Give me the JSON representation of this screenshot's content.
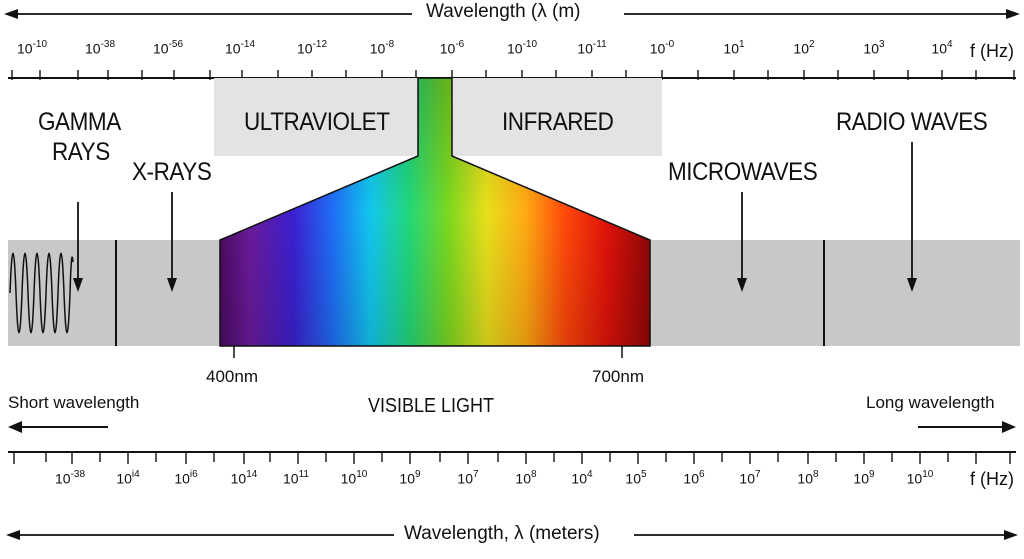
{
  "top_axis": {
    "title": "Wavelength (λ (m)",
    "unit": "f (Hz)",
    "ticks": [
      {
        "base": "10",
        "exp": "-10"
      },
      {
        "base": "10",
        "exp": "-38"
      },
      {
        "base": "10",
        "exp": "-56"
      },
      {
        "base": "10",
        "exp": "-14"
      },
      {
        "base": "10",
        "exp": "-12"
      },
      {
        "base": "10",
        "exp": "-8"
      },
      {
        "base": "10",
        "exp": "-6"
      },
      {
        "base": "10",
        "exp": "-10"
      },
      {
        "base": "10",
        "exp": "-11"
      },
      {
        "base": "10",
        "exp": "-0"
      },
      {
        "base": "10",
        "exp": "1"
      },
      {
        "base": "10",
        "exp": "2"
      },
      {
        "base": "10",
        "exp": "3"
      },
      {
        "base": "10",
        "exp": "4"
      }
    ]
  },
  "bottom_axis": {
    "title": "Wavelength, λ (meters)",
    "unit": "f (Hz)",
    "ticks": [
      {
        "base": "10",
        "exp": "-38"
      },
      {
        "base": "10",
        "exp": "i4"
      },
      {
        "base": "10",
        "exp": "i6"
      },
      {
        "base": "10",
        "exp": "14"
      },
      {
        "base": "10",
        "exp": "11"
      },
      {
        "base": "10",
        "exp": "10"
      },
      {
        "base": "10",
        "exp": "9"
      },
      {
        "base": "10",
        "exp": "7"
      },
      {
        "base": "10",
        "exp": "8"
      },
      {
        "base": "10",
        "exp": "4"
      },
      {
        "base": "10",
        "exp": "5"
      },
      {
        "base": "10",
        "exp": "6"
      },
      {
        "base": "10",
        "exp": "7"
      },
      {
        "base": "10",
        "exp": "8"
      },
      {
        "base": "10",
        "exp": "9"
      },
      {
        "base": "10",
        "exp": "10"
      }
    ]
  },
  "bands": {
    "gamma_line1": "GAMMA",
    "gamma_line2": "RAYS",
    "xrays": "X-RAYS",
    "ultraviolet": "ULTRAVIOLET",
    "infrared": "INFRARED",
    "microwaves": "MICROWAVES",
    "radio": "RADIO WAVES",
    "visible": "VISIBLE LIGHT"
  },
  "markers": {
    "nm400": "400nm",
    "nm700": "700nm"
  },
  "direction": {
    "short": "Short wavelength",
    "long": "Long wavelength"
  },
  "colors": {
    "band_gray": "#c8c8c8",
    "light_gray": "#e3e3e3",
    "ink": "#111111"
  }
}
